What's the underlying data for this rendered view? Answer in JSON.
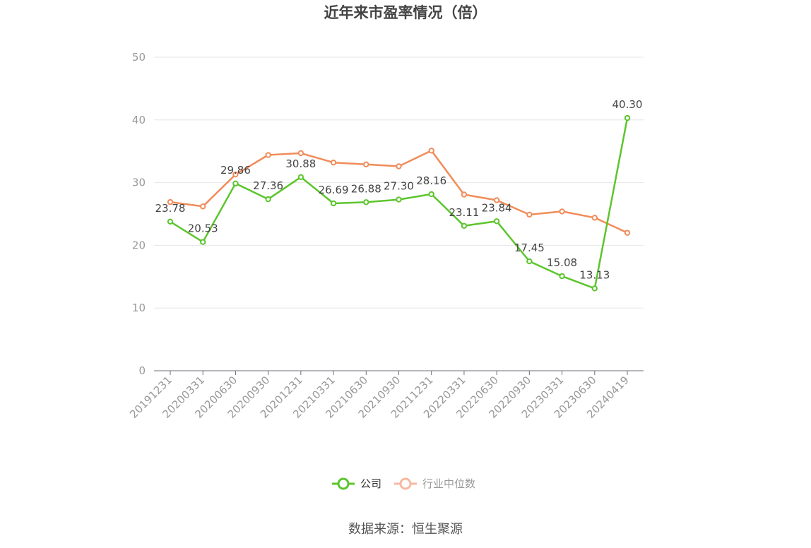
{
  "chart_data": {
    "type": "line",
    "title": "近年来市盈率情况（倍）",
    "categories": [
      "20191231",
      "20200331",
      "20200630",
      "20200930",
      "20201231",
      "20210331",
      "20210630",
      "20210930",
      "20211231",
      "20220331",
      "20220630",
      "20220930",
      "20230331",
      "20230630",
      "20240419"
    ],
    "series": [
      {
        "name": "公司",
        "color": "#5cc52d",
        "values": [
          23.78,
          20.53,
          29.86,
          27.36,
          30.88,
          26.69,
          26.88,
          27.3,
          28.16,
          23.11,
          23.84,
          17.45,
          15.08,
          13.13,
          40.3
        ],
        "labels": [
          "23.78",
          "20.53",
          "29.86",
          "27.36",
          "30.88",
          "26.69",
          "26.88",
          "27.30",
          "28.16",
          "23.11",
          "23.84",
          "17.45",
          "15.08",
          "13.13",
          "40.30"
        ]
      },
      {
        "name": "行业中位数",
        "color": "#f08c5a",
        "legend_color": "#f7b9a0",
        "values": [
          26.9,
          26.2,
          31.3,
          34.4,
          34.7,
          33.2,
          32.9,
          32.6,
          35.1,
          28.1,
          27.2,
          24.9,
          25.4,
          24.4,
          22.0
        ]
      }
    ],
    "ylim": [
      0,
      50
    ],
    "yticks": [
      "0",
      "10",
      "20",
      "30",
      "40",
      "50"
    ],
    "grid": true,
    "legend": "bottom-center",
    "source": "数据来源：恒生聚源"
  }
}
